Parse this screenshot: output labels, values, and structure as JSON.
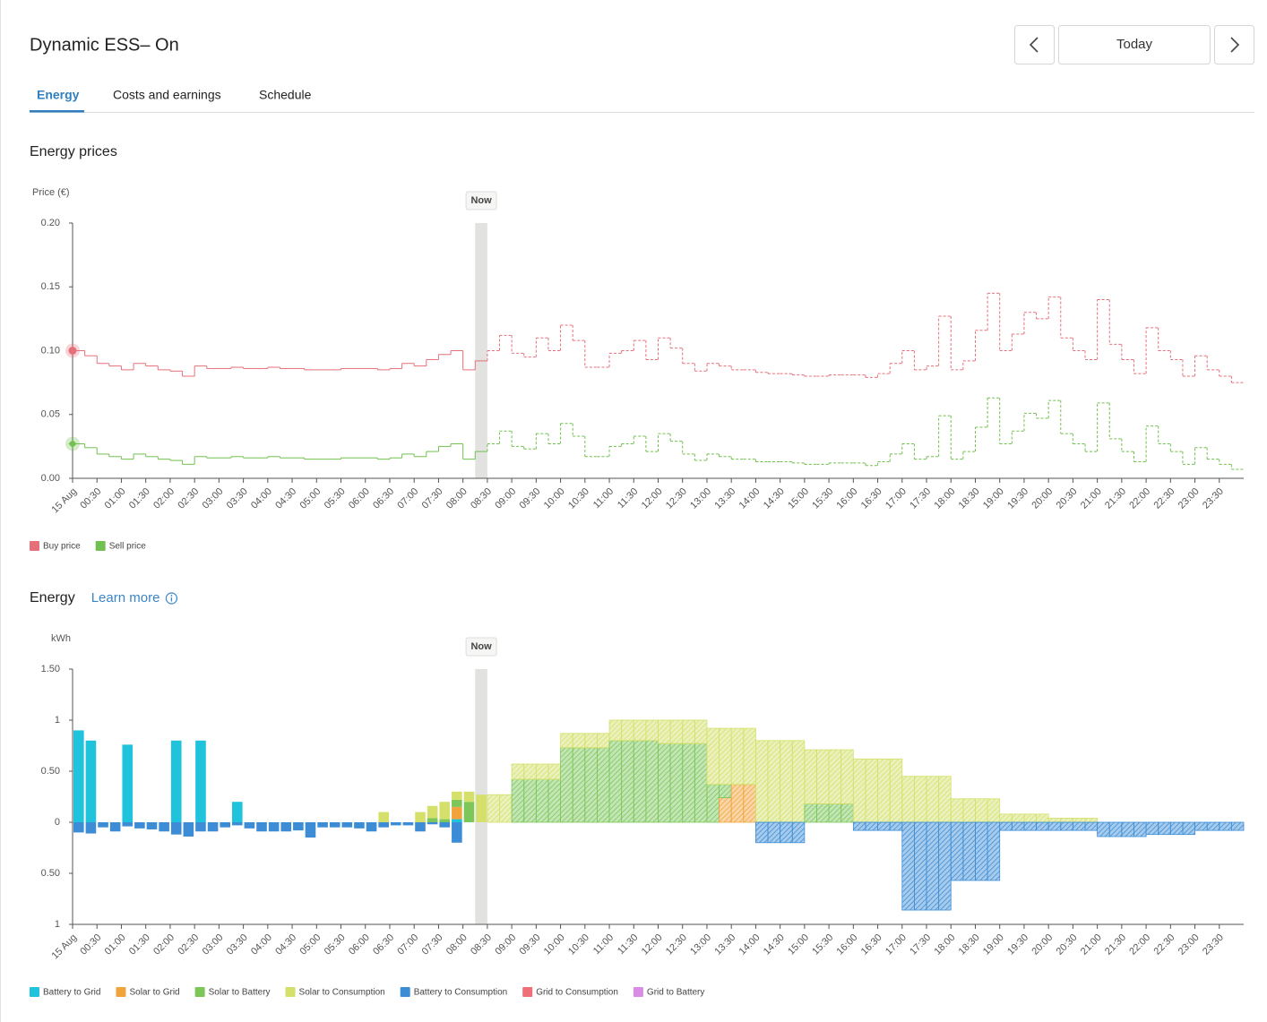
{
  "header": {
    "title": "Dynamic ESS– On",
    "date_button": "Today",
    "tabs": [
      "Energy",
      "Costs and earnings",
      "Schedule"
    ]
  },
  "chart_data": [
    {
      "type": "line",
      "step": true,
      "title": "Energy prices",
      "ylabel": "Price (€)",
      "annotation": {
        "text": "Now",
        "x": 33
      },
      "categories": [
        "15 Aug",
        null,
        "00:30",
        null,
        "01:00",
        null,
        "01:30",
        null,
        "02:00",
        null,
        "02:30",
        null,
        "03:00",
        null,
        "03:30",
        null,
        "04:00",
        null,
        "04:30",
        null,
        "05:00",
        null,
        "05:30",
        null,
        "06:00",
        null,
        "06:30",
        null,
        "07:00",
        null,
        "07:30",
        null,
        "08:00",
        null,
        "08:30",
        null,
        "09:00",
        null,
        "09:30",
        null,
        "10:00",
        null,
        "10:30",
        null,
        "11:00",
        null,
        "11:30",
        null,
        "12:00",
        null,
        "12:30",
        null,
        "13:00",
        null,
        "13:30",
        null,
        "14:00",
        null,
        "14:30",
        null,
        "15:00",
        null,
        "15:30",
        null,
        "16:00",
        null,
        "16:30",
        null,
        "17:00",
        null,
        "17:30",
        null,
        "18:00",
        null,
        "18:30",
        null,
        "19:00",
        null,
        "19:30",
        null,
        "20:00",
        null,
        "20:30",
        null,
        "21:00",
        null,
        "21:30",
        null,
        "22:00",
        null,
        "22:30",
        null,
        "23:00",
        null,
        "23:30",
        null
      ],
      "ylim": [
        0,
        0.2
      ],
      "yticks": [
        {
          "value": 0,
          "label": "0.00"
        },
        0.05,
        {
          "value": 0.1,
          "label": "0.10"
        },
        0.15,
        {
          "value": 0.2,
          "label": "0.20"
        }
      ],
      "series": [
        {
          "name": "Buy price",
          "color": "#e6707a",
          "values": [
            0.1,
            0.096,
            0.09,
            0.088,
            0.085,
            0.09,
            0.088,
            0.085,
            0.084,
            0.08,
            0.088,
            0.086,
            0.086,
            0.087,
            0.086,
            0.086,
            0.087,
            0.086,
            0.086,
            0.085,
            0.085,
            0.085,
            0.086,
            0.086,
            0.086,
            0.085,
            0.086,
            0.09,
            0.088,
            0.093,
            0.097,
            0.1,
            0.085,
            0.092,
            0.1,
            0.112,
            0.098,
            0.095,
            0.11,
            0.1,
            0.12,
            0.108,
            0.087,
            0.087,
            0.098,
            0.1,
            0.108,
            0.093,
            0.11,
            0.102,
            0.09,
            0.084,
            0.09,
            0.088,
            0.085,
            0.085,
            0.083,
            0.082,
            0.082,
            0.081,
            0.08,
            0.08,
            0.081,
            0.081,
            0.081,
            0.079,
            0.082,
            0.09,
            0.1,
            0.085,
            0.088,
            0.127,
            0.085,
            0.092,
            0.116,
            0.145,
            0.1,
            0.113,
            0.13,
            0.125,
            0.142,
            0.11,
            0.1,
            0.093,
            0.14,
            0.105,
            0.093,
            0.082,
            0.118,
            0.1,
            0.093,
            0.08,
            0.096,
            0.085,
            0.08,
            0.075
          ]
        },
        {
          "name": "Sell price",
          "color": "#72c04f",
          "values": [
            0.027,
            0.024,
            0.019,
            0.017,
            0.015,
            0.019,
            0.017,
            0.015,
            0.014,
            0.011,
            0.017,
            0.016,
            0.016,
            0.017,
            0.016,
            0.016,
            0.017,
            0.016,
            0.016,
            0.015,
            0.015,
            0.015,
            0.016,
            0.016,
            0.016,
            0.015,
            0.016,
            0.019,
            0.017,
            0.021,
            0.025,
            0.027,
            0.015,
            0.021,
            0.027,
            0.037,
            0.025,
            0.023,
            0.035,
            0.027,
            0.043,
            0.033,
            0.017,
            0.017,
            0.025,
            0.027,
            0.033,
            0.021,
            0.035,
            0.029,
            0.019,
            0.014,
            0.019,
            0.017,
            0.015,
            0.015,
            0.013,
            0.013,
            0.013,
            0.012,
            0.011,
            0.011,
            0.012,
            0.012,
            0.012,
            0.01,
            0.013,
            0.019,
            0.027,
            0.015,
            0.017,
            0.049,
            0.015,
            0.021,
            0.04,
            0.063,
            0.027,
            0.037,
            0.051,
            0.047,
            0.061,
            0.035,
            0.027,
            0.021,
            0.059,
            0.031,
            0.021,
            0.013,
            0.041,
            0.027,
            0.021,
            0.011,
            0.024,
            0.015,
            0.011,
            0.007
          ]
        }
      ]
    },
    {
      "type": "bar",
      "stacked": true,
      "title": "Energy",
      "link": "Learn more",
      "ylabel": "kWh",
      "annotation": {
        "text": "Now",
        "x": 33
      },
      "categories": [
        "15 Aug",
        null,
        "00:30",
        null,
        "01:00",
        null,
        "01:30",
        null,
        "02:00",
        null,
        "02:30",
        null,
        "03:00",
        null,
        "03:30",
        null,
        "04:00",
        null,
        "04:30",
        null,
        "05:00",
        null,
        "05:30",
        null,
        "06:00",
        null,
        "06:30",
        null,
        "07:00",
        null,
        "07:30",
        null,
        "08:00",
        null,
        "08:30",
        null,
        "09:00",
        null,
        "09:30",
        null,
        "10:00",
        null,
        "10:30",
        null,
        "11:00",
        null,
        "11:30",
        null,
        "12:00",
        null,
        "12:30",
        null,
        "13:00",
        null,
        "13:30",
        null,
        "14:00",
        null,
        "14:30",
        null,
        "15:00",
        null,
        "15:30",
        null,
        "16:00",
        null,
        "16:30",
        null,
        "17:00",
        null,
        "17:30",
        null,
        "18:00",
        null,
        "18:30",
        null,
        "19:00",
        null,
        "19:30",
        null,
        "20:00",
        null,
        "20:30",
        null,
        "21:00",
        null,
        "21:30",
        null,
        "22:00",
        null,
        "22:30",
        null,
        "23:00",
        null,
        "23:30",
        null
      ],
      "ylim": [
        -1,
        1.5
      ],
      "yticks": [
        {
          "value": 1.5,
          "label": "1.50"
        },
        1,
        {
          "value": 0.5,
          "label": "0.50"
        },
        0,
        {
          "value": -0.5,
          "label": "0.50"
        },
        {
          "value": -1,
          "label": "1"
        }
      ],
      "series": [
        {
          "name": "Battery to Grid",
          "color": "#1fc3db",
          "values": [
            0.9,
            0.8,
            0,
            0,
            0.76,
            0,
            0,
            0,
            0.8,
            0,
            0.8,
            0,
            0,
            0.2,
            0,
            0,
            0,
            0,
            0,
            0,
            0,
            0,
            0,
            0,
            0,
            0,
            0,
            0,
            0,
            0,
            0,
            0.03,
            0,
            0,
            0,
            0,
            0,
            0,
            0,
            0,
            0,
            0,
            0,
            0,
            0,
            0,
            0,
            0,
            0,
            0,
            0,
            0,
            0,
            0,
            0,
            0,
            0,
            0,
            0,
            0,
            0,
            0,
            0,
            0,
            0,
            0,
            0,
            0,
            0,
            0,
            0,
            0,
            0,
            0,
            0,
            0,
            0,
            0,
            0,
            0,
            0,
            0,
            0,
            0,
            0,
            0,
            0,
            0,
            0,
            0,
            0,
            0,
            0,
            0,
            0,
            0
          ]
        },
        {
          "name": "Solar to Grid",
          "color": "#f2a43c",
          "values": [
            0,
            0,
            0,
            0,
            0,
            0,
            0,
            0,
            0,
            0,
            0,
            0,
            0,
            0,
            0,
            0,
            0,
            0,
            0,
            0,
            0,
            0,
            0,
            0,
            0,
            0,
            0,
            0,
            0,
            0,
            0,
            0.12,
            0,
            0,
            0,
            0,
            0,
            0,
            0,
            0,
            0,
            0,
            0,
            0,
            0,
            0,
            0,
            0,
            0,
            0,
            0,
            0,
            0,
            0.24,
            0.37,
            0.37,
            0,
            0,
            0,
            0,
            0,
            0,
            0,
            0,
            0,
            0,
            0,
            0,
            0,
            0,
            0,
            0,
            0,
            0,
            0,
            0,
            0,
            0,
            0,
            0,
            0,
            0,
            0,
            0,
            0,
            0,
            0,
            0,
            0,
            0,
            0,
            0,
            0,
            0,
            0,
            0
          ]
        },
        {
          "name": "Solar to Battery",
          "color": "#7cc65a",
          "values": [
            0,
            0,
            0,
            0,
            0,
            0,
            0,
            0,
            0,
            0,
            0,
            0,
            0,
            0,
            0,
            0,
            0,
            0,
            0,
            0,
            0,
            0,
            0,
            0,
            0,
            0,
            0,
            0,
            0,
            0.04,
            0.03,
            0.07,
            0.2,
            0,
            0,
            0,
            0.42,
            0.42,
            0.42,
            0.42,
            0.73,
            0.73,
            0.73,
            0.73,
            0.8,
            0.8,
            0.8,
            0.8,
            0.77,
            0.77,
            0.77,
            0.77,
            0.37,
            0.13,
            0,
            0,
            0,
            0,
            0,
            0,
            0.18,
            0.18,
            0.18,
            0.18,
            0,
            0,
            0,
            0,
            0,
            0,
            0,
            0,
            0,
            0,
            0,
            0,
            0,
            0,
            0,
            0,
            0,
            0,
            0,
            0,
            0,
            0,
            0,
            0,
            0,
            0,
            0,
            0,
            0,
            0,
            0,
            0
          ]
        },
        {
          "name": "Solar to Consumption",
          "color": "#d4e06a",
          "values": [
            0,
            0,
            0,
            0,
            0,
            0,
            0,
            0,
            0,
            0,
            0,
            0,
            0,
            0,
            0,
            0,
            0,
            0,
            0,
            0,
            0,
            0,
            0,
            0,
            0,
            0.1,
            0,
            0,
            0.1,
            0.12,
            0.17,
            0.08,
            0.1,
            0.27,
            0.27,
            0.27,
            0.15,
            0.15,
            0.15,
            0.15,
            0.14,
            0.14,
            0.14,
            0.14,
            0.2,
            0.2,
            0.2,
            0.2,
            0.23,
            0.23,
            0.23,
            0.23,
            0.55,
            0.55,
            0.55,
            0.55,
            0.8,
            0.8,
            0.8,
            0.8,
            0.53,
            0.53,
            0.53,
            0.53,
            0.62,
            0.62,
            0.62,
            0.62,
            0.45,
            0.45,
            0.45,
            0.45,
            0.23,
            0.23,
            0.23,
            0.23,
            0.08,
            0.08,
            0.08,
            0.08,
            0.04,
            0.04,
            0.04,
            0.04,
            0,
            0,
            0,
            0,
            0,
            0,
            0,
            0,
            0,
            0,
            0,
            0
          ]
        },
        {
          "name": "Battery to Consumption",
          "color": "#3c8dd5",
          "values": [
            -0.1,
            -0.11,
            -0.05,
            -0.09,
            -0.04,
            -0.06,
            -0.07,
            -0.09,
            -0.12,
            -0.14,
            -0.09,
            -0.09,
            -0.05,
            -0.03,
            -0.06,
            -0.09,
            -0.09,
            -0.09,
            -0.08,
            -0.15,
            -0.05,
            -0.05,
            -0.05,
            -0.06,
            -0.09,
            -0.05,
            -0.03,
            -0.03,
            -0.09,
            -0.02,
            -0.05,
            -0.2,
            0,
            0,
            0,
            0,
            0,
            0,
            0,
            0,
            0,
            0,
            0,
            0,
            0,
            0,
            0,
            0,
            0,
            0,
            0,
            0,
            0,
            0,
            0,
            0,
            -0.2,
            -0.2,
            -0.2,
            -0.2,
            0,
            0,
            0,
            0,
            -0.08,
            -0.08,
            -0.08,
            -0.08,
            -0.86,
            -0.86,
            -0.86,
            -0.86,
            -0.57,
            -0.57,
            -0.57,
            -0.57,
            -0.08,
            -0.08,
            -0.08,
            -0.08,
            -0.08,
            -0.08,
            -0.08,
            -0.08,
            -0.14,
            -0.14,
            -0.14,
            -0.14,
            -0.12,
            -0.12,
            -0.12,
            -0.12,
            -0.08,
            -0.08,
            -0.08,
            -0.08
          ]
        },
        {
          "name": "Grid to Consumption",
          "color": "#ee6f78",
          "values": [
            0,
            0,
            0,
            0,
            0,
            0,
            0,
            0,
            0,
            0,
            0,
            0,
            0,
            0,
            0,
            0,
            0,
            0,
            0,
            0,
            0,
            0,
            0,
            0,
            0,
            0,
            0,
            0,
            0,
            0,
            0,
            0,
            0,
            0,
            0,
            0,
            0,
            0,
            0,
            0,
            0,
            0,
            0,
            0,
            0,
            0,
            0,
            0,
            0,
            0,
            0,
            0,
            0,
            0,
            0,
            0,
            0,
            0,
            0,
            0,
            0,
            0,
            0,
            0,
            0,
            0,
            0,
            0,
            0,
            0,
            0,
            0,
            0,
            0,
            0,
            0,
            0,
            0,
            0,
            0,
            0,
            0,
            0,
            0,
            0,
            0,
            0,
            0,
            0,
            0,
            0,
            0,
            0,
            0,
            0,
            0
          ]
        },
        {
          "name": "Grid to Battery",
          "color": "#d98be6",
          "values": [
            0,
            0,
            0,
            0,
            0,
            0,
            0,
            0,
            0,
            0,
            0,
            0,
            0,
            0,
            0,
            0,
            0,
            0,
            0,
            0,
            0,
            0,
            0,
            0,
            0,
            0,
            0,
            0,
            0,
            0,
            0,
            0,
            0,
            0,
            0,
            0,
            0,
            0,
            0,
            0,
            0,
            0,
            0,
            0,
            0,
            0,
            0,
            0,
            0,
            0,
            0,
            0,
            0,
            0,
            0,
            0,
            0,
            0,
            0,
            0,
            0,
            0,
            0,
            0,
            0,
            0,
            0,
            0,
            0,
            0,
            0,
            0,
            0,
            0,
            0,
            0,
            0,
            0,
            0,
            0,
            0,
            0,
            0,
            0,
            0,
            0,
            0,
            0,
            0,
            0,
            0,
            0,
            0,
            0,
            0,
            0
          ]
        }
      ]
    }
  ]
}
